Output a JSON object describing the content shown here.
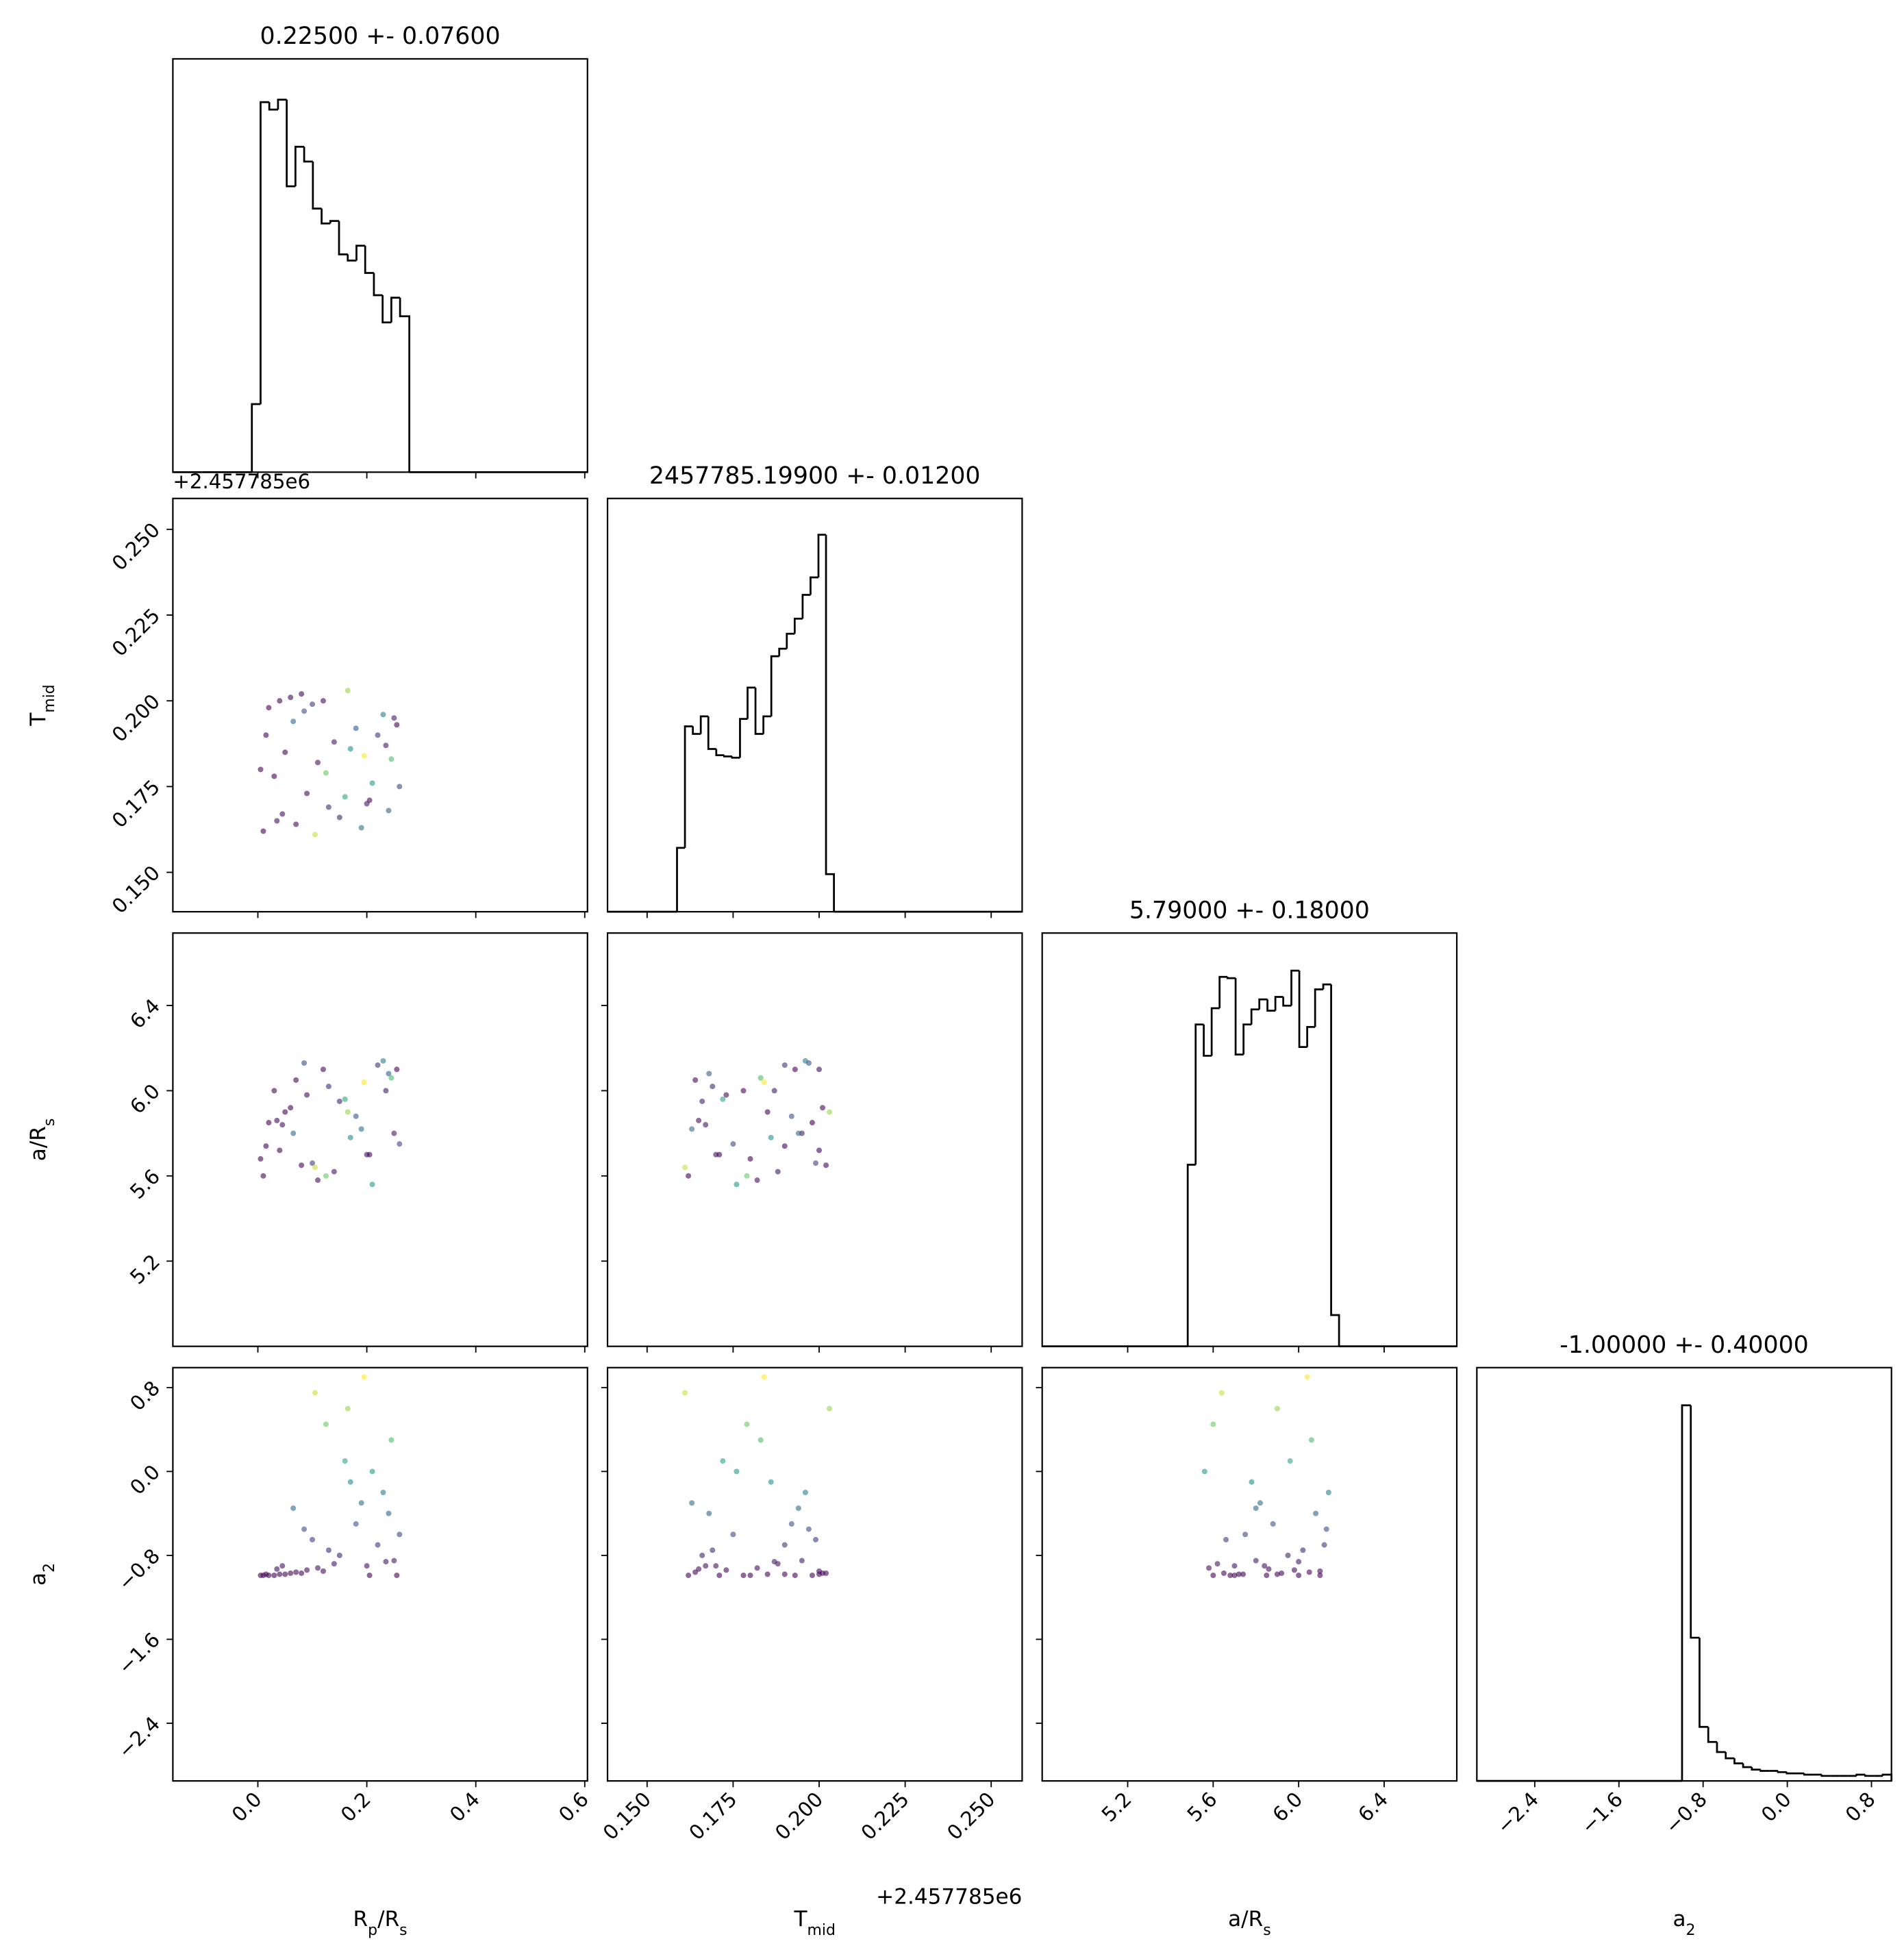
{
  "chart_data": {
    "type": "corner",
    "cmap": [
      "#440154",
      "#3b528b",
      "#21918c",
      "#5ec962",
      "#fde725"
    ],
    "clim": [
      -1,
      0.9
    ],
    "parameters": [
      {
        "label": [
          "R",
          "p",
          "/R",
          "s"
        ],
        "title": "0.22500 +- 0.07600",
        "lim": [
          -0.156,
          0.605
        ],
        "ticks": [
          {
            "value": 0,
            "label": "0.0"
          },
          0.2,
          0.4,
          0.6
        ],
        "bins": [
          -0.011,
          0.005,
          0.021,
          0.037,
          0.053,
          0.069,
          0.085,
          0.101,
          0.117,
          0.133,
          0.149,
          0.165,
          0.181,
          0.197,
          0.213,
          0.229,
          0.245,
          0.261,
          0.278
        ],
        "counts": [
          55,
          299,
          293,
          301,
          231,
          263,
          251,
          213,
          201,
          203,
          176,
          171,
          183,
          161,
          143,
          121,
          141,
          126
        ],
        "hist_ylim": [
          0,
          334
        ],
        "samples": [
          0.01,
          0.05,
          0.12,
          0.2,
          0.25,
          0.03,
          0.08,
          0.15,
          0.22,
          0.26,
          0.02,
          0.07,
          0.11,
          0.18,
          0.24,
          0.04,
          0.09,
          0.14,
          0.19,
          0.23,
          0.005,
          0.06,
          0.13,
          0.17,
          0.21,
          0.255,
          0.035,
          0.1,
          0.16,
          0.245,
          0.015,
          0.045,
          0.085,
          0.125,
          0.165,
          0.205,
          0.235,
          0.065,
          0.105,
          0.195
        ]
      },
      {
        "label": [
          "T",
          "mid"
        ],
        "title": "2457785.19900 +- 0.01200",
        "offset": "+2.457785e6",
        "lim": [
          0.1385,
          0.259
        ],
        "ticks": [
          {
            "value": 0.15,
            "label": "0.150"
          },
          0.175,
          {
            "value": 0.2,
            "label": "0.200"
          },
          0.225,
          {
            "value": 0.25,
            "label": "0.250"
          }
        ],
        "bins": [
          0.1587,
          0.161,
          0.1633,
          0.1656,
          0.1678,
          0.1701,
          0.1724,
          0.1747,
          0.177,
          0.1792,
          0.1815,
          0.1838,
          0.1861,
          0.1884,
          0.1906,
          0.1929,
          0.1952,
          0.1975,
          0.1998,
          0.202,
          0.2043
        ],
        "counts": [
          51,
          148,
          142,
          156,
          130,
          125,
          124,
          123,
          154,
          179,
          142,
          156,
          204,
          210,
          222,
          234,
          253,
          267,
          301,
          30
        ],
        "hist_ylim": [
          0,
          330
        ],
        "samples": [
          0.162,
          0.185,
          0.2,
          0.17,
          0.195,
          0.178,
          0.202,
          0.166,
          0.19,
          0.175,
          0.198,
          0.164,
          0.182,
          0.192,
          0.168,
          0.2,
          0.173,
          0.188,
          0.163,
          0.196,
          0.18,
          0.201,
          0.169,
          0.186,
          0.176,
          0.193,
          0.165,
          0.199,
          0.172,
          0.183,
          0.19,
          0.167,
          0.197,
          0.179,
          0.203,
          0.171,
          0.187,
          0.194,
          0.161,
          0.184
        ]
      },
      {
        "label": [
          "a/R",
          "s"
        ],
        "title": "5.79000 +- 0.18000",
        "lim": [
          4.8,
          6.74
        ],
        "ticks": [
          5.2,
          5.6,
          {
            "value": 6,
            "label": "6.0"
          },
          6.4
        ],
        "bins": [
          5.481,
          5.518,
          5.556,
          5.593,
          5.63,
          5.667,
          5.705,
          5.742,
          5.779,
          5.816,
          5.854,
          5.891,
          5.928,
          5.966,
          6.003,
          6.04,
          6.077,
          6.115,
          6.152,
          6.189
        ],
        "counts": [
          145,
          257,
          232,
          270,
          295,
          294,
          233,
          257,
          269,
          277,
          268,
          279,
          272,
          300,
          239,
          255,
          285,
          289,
          25
        ],
        "hist_ylim": [
          0,
          330
        ],
        "samples": [
          5.6,
          5.9,
          6.1,
          5.7,
          5.8,
          6.0,
          5.65,
          5.95,
          6.12,
          5.75,
          5.85,
          6.05,
          5.58,
          5.88,
          6.08,
          5.72,
          5.98,
          5.62,
          5.82,
          6.14,
          5.68,
          5.92,
          6.02,
          5.78,
          5.56,
          6.1,
          5.86,
          5.66,
          5.96,
          6.06,
          5.74,
          5.84,
          6.13,
          5.6,
          5.9,
          5.7,
          6.0,
          5.8,
          5.64,
          6.04
        ]
      },
      {
        "label": [
          "a",
          "2"
        ],
        "title": "-1.00000 +- 0.40000",
        "lim": [
          -2.95,
          0.99
        ],
        "ticks": [
          {
            "value": -2.4,
            "label": "−2.4"
          },
          {
            "value": -1.6,
            "label": "−1.6"
          },
          {
            "value": -0.8,
            "label": "−0.8"
          },
          {
            "value": 0,
            "label": "0.0"
          },
          0.8
        ],
        "bins": [
          -1.0,
          -0.917,
          -0.834,
          -0.751,
          -0.668,
          -0.585,
          -0.502,
          -0.42,
          -0.337,
          -0.254,
          -0.171,
          -0.088,
          -0.005,
          0.078,
          0.161,
          0.244,
          0.327,
          0.41,
          0.493,
          0.576,
          0.658,
          0.741,
          0.824,
          0.907,
          0.99
        ],
        "counts": [
          299,
          114,
          43,
          31,
          23,
          18,
          14,
          11,
          9,
          8,
          8,
          7,
          6,
          6,
          5,
          5,
          4,
          4,
          4,
          4,
          5,
          4,
          4,
          5
        ],
        "hist_ylim": [
          0,
          329
        ],
        "samples": [
          -0.99,
          -0.98,
          -0.95,
          -0.9,
          -0.85,
          -0.99,
          -0.97,
          -0.8,
          -0.7,
          -0.6,
          -0.99,
          -0.96,
          -0.92,
          -0.5,
          -0.4,
          -0.98,
          -0.94,
          -0.88,
          -0.3,
          -0.2,
          -0.99,
          -0.97,
          -0.75,
          -0.1,
          0.0,
          -0.99,
          -0.93,
          -0.65,
          0.1,
          0.3,
          -0.98,
          -0.9,
          -0.55,
          0.45,
          0.6,
          -0.99,
          -0.86,
          -0.35,
          0.75,
          0.9
        ]
      }
    ]
  }
}
